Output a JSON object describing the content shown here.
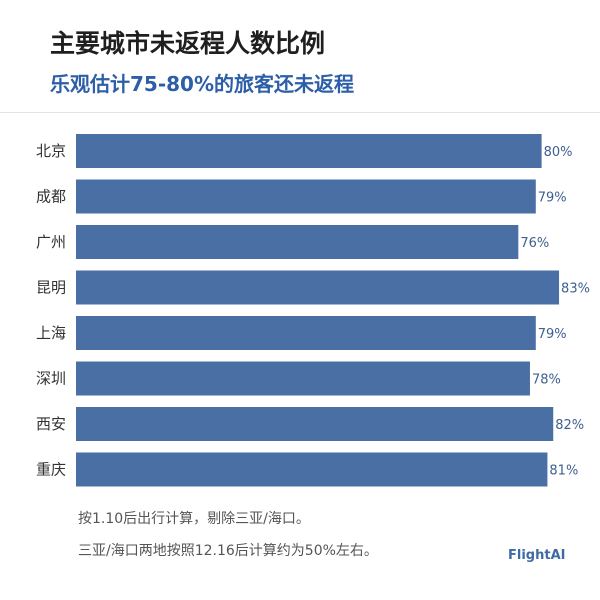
{
  "header": {
    "title": "主要城市未返程人数比例",
    "subtitle": "乐观估计75-80%的旅客还未返程"
  },
  "chart_data": {
    "type": "bar",
    "orientation": "horizontal",
    "categories": [
      "北京",
      "成都",
      "广州",
      "昆明",
      "上海",
      "深圳",
      "西安",
      "重庆"
    ],
    "values": [
      80,
      79,
      76,
      83,
      79,
      78,
      82,
      81
    ],
    "value_labels": [
      "80%",
      "79%",
      "76%",
      "83%",
      "79%",
      "78%",
      "82%",
      "81%"
    ],
    "unit": "%",
    "title": "主要城市未返程人数比例",
    "subtitle": "乐观估计75-80%的旅客还未返程",
    "xlim": [
      0,
      100
    ],
    "grid": false,
    "bar_color": "#4a6fa5",
    "label_color": "#3e5f8f"
  },
  "notes": {
    "line1": "按1.10后出行计算，剔除三亚/海口。",
    "line2": "三亚/海口两地按照12.16后计算约为50%左右。"
  },
  "brand": "FlightAI"
}
